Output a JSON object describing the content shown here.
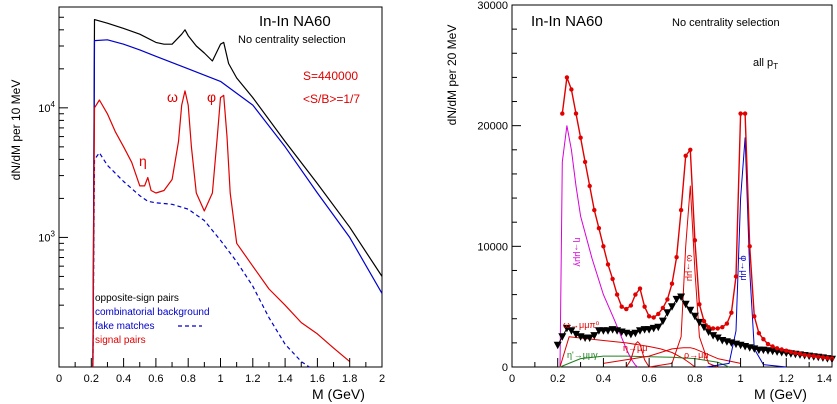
{
  "chart_data": [
    {
      "type": "line",
      "yscale": "log",
      "title": "In-In  NA60",
      "subtitle": "No centrality selection",
      "xlabel": "M (GeV)",
      "ylabel": "dN/dM per 10 MeV",
      "xlim": [
        0,
        2
      ],
      "ylim": [
        100,
        60000
      ],
      "x_ticks": [
        "0",
        "0.2",
        "0.4",
        "0.6",
        "0.8",
        "1",
        "1.2",
        "1.4",
        "1.6",
        "1.8",
        "2"
      ],
      "y_ticks": [
        {
          "value": 1000,
          "base": "10",
          "exp": "3"
        },
        {
          "value": 10000,
          "base": "10",
          "exp": "4"
        }
      ],
      "annotations": {
        "signal_count": "S=440000",
        "s_over_b": "<S/B>=1/7",
        "omega": "ω",
        "phi": "φ",
        "eta": "η"
      },
      "legend_position": "bottom-left",
      "series": [
        {
          "name": "opposite-sign pairs",
          "color": "#000000",
          "style": "solid",
          "x": [
            0.21,
            0.22,
            0.3,
            0.4,
            0.5,
            0.6,
            0.65,
            0.7,
            0.76,
            0.78,
            0.8,
            0.85,
            0.9,
            0.95,
            1.0,
            1.02,
            1.05,
            1.1,
            1.2,
            1.4,
            1.6,
            1.8,
            2.0
          ],
          "y": [
            100,
            48000,
            45000,
            41000,
            37000,
            32000,
            31000,
            31000,
            37000,
            40000,
            36000,
            30000,
            26500,
            23000,
            31000,
            32000,
            22000,
            17000,
            12000,
            5500,
            2600,
            1200,
            500
          ]
        },
        {
          "name": "combinatorial background",
          "color": "#0000cc",
          "style": "solid",
          "x": [
            0.21,
            0.22,
            0.3,
            0.4,
            0.5,
            0.6,
            0.8,
            1.0,
            1.2,
            1.4,
            1.6,
            1.8,
            2.0
          ],
          "y": [
            100,
            33000,
            33500,
            31000,
            28000,
            25000,
            20000,
            16000,
            10500,
            5000,
            2200,
            1000,
            370
          ]
        },
        {
          "name": "fake matches",
          "color": "#0000cc",
          "style": "dashed",
          "x": [
            0.21,
            0.22,
            0.25,
            0.3,
            0.4,
            0.5,
            0.55,
            0.6,
            0.7,
            0.8,
            0.9,
            1.0,
            1.1,
            1.2,
            1.3,
            1.4,
            1.5,
            1.55
          ],
          "y": [
            100,
            4000,
            4500,
            3600,
            2700,
            2100,
            1900,
            1850,
            1800,
            1650,
            1350,
            950,
            650,
            420,
            240,
            150,
            110,
            100
          ]
        },
        {
          "name": "signal pairs",
          "color": "#e00000",
          "style": "solid",
          "x": [
            0.21,
            0.22,
            0.25,
            0.3,
            0.35,
            0.4,
            0.45,
            0.5,
            0.53,
            0.55,
            0.57,
            0.6,
            0.65,
            0.7,
            0.74,
            0.76,
            0.78,
            0.8,
            0.82,
            0.85,
            0.9,
            0.95,
            0.98,
            1.0,
            1.02,
            1.04,
            1.06,
            1.1,
            1.2,
            1.3,
            1.4,
            1.5,
            1.6,
            1.7,
            1.8
          ],
          "y": [
            100,
            10000,
            11500,
            9000,
            6500,
            5000,
            3800,
            2500,
            2500,
            2900,
            2300,
            2200,
            2300,
            2800,
            5500,
            10500,
            13500,
            10500,
            5000,
            2200,
            1600,
            2200,
            6000,
            12000,
            12500,
            6000,
            2200,
            900,
            600,
            400,
            300,
            220,
            180,
            140,
            110
          ]
        }
      ]
    },
    {
      "type": "line",
      "yscale": "linear",
      "title": "In-In  NA60",
      "subtitle": "No centrality selection",
      "pt_label": "all p",
      "pt_sub": "T",
      "xlabel": "M (GeV)",
      "ylabel": "dN/dM per 20 MeV",
      "xlim": [
        0,
        1.4
      ],
      "ylim": [
        0,
        30000
      ],
      "x_ticks": [
        "0",
        "0.2",
        "0.4",
        "0.6",
        "0.8",
        "1",
        "1.2",
        "1.4"
      ],
      "y_ticks": [
        "0",
        "10000",
        "20000",
        "30000"
      ],
      "series_labels": {
        "eta_dalitz": "η→μμγ",
        "omega_dalitz": "ω→μμπ⁰",
        "eta_prime": "η'→μμγ",
        "eta_direct": "η→μμ",
        "rho": "ρ→μμ",
        "omega": "ω→μμ",
        "phi": "φ→μμ"
      },
      "series": [
        {
          "id": "total",
          "color": "#e00000",
          "marker": "circle",
          "x": [
            0.22,
            0.24,
            0.26,
            0.28,
            0.3,
            0.32,
            0.34,
            0.36,
            0.38,
            0.4,
            0.42,
            0.44,
            0.46,
            0.48,
            0.5,
            0.52,
            0.54,
            0.56,
            0.58,
            0.6,
            0.62,
            0.64,
            0.66,
            0.68,
            0.7,
            0.72,
            0.74,
            0.76,
            0.78,
            0.8,
            0.82,
            0.84,
            0.86,
            0.88,
            0.9,
            0.92,
            0.94,
            0.96,
            0.98,
            1.0,
            1.02,
            1.04,
            1.06,
            1.08,
            1.1,
            1.12,
            1.14,
            1.16,
            1.18,
            1.2,
            1.22,
            1.24,
            1.26,
            1.28,
            1.3,
            1.32,
            1.34,
            1.36,
            1.38,
            1.4
          ],
          "y": [
            21000,
            24000,
            23000,
            21000,
            19000,
            17000,
            15000,
            13000,
            11500,
            10000,
            8500,
            7300,
            6000,
            5000,
            4800,
            5100,
            6000,
            6500,
            5000,
            4200,
            4100,
            4400,
            4900,
            5600,
            6900,
            9100,
            13000,
            17500,
            18000,
            10500,
            5200,
            3800,
            3300,
            3200,
            3200,
            3300,
            3600,
            4500,
            7500,
            21000,
            21000,
            10000,
            4200,
            2800,
            2300,
            1900,
            1700,
            1550,
            1450,
            1350,
            1250,
            1150,
            1100,
            1000,
            950,
            900,
            850,
            800,
            750,
            700
          ]
        },
        {
          "id": "combinatorial",
          "color": "#000000",
          "marker": "triangle-down",
          "x": [
            0.2,
            0.22,
            0.24,
            0.26,
            0.28,
            0.3,
            0.32,
            0.34,
            0.36,
            0.38,
            0.4,
            0.42,
            0.44,
            0.46,
            0.48,
            0.5,
            0.52,
            0.54,
            0.56,
            0.58,
            0.6,
            0.62,
            0.64,
            0.66,
            0.68,
            0.7,
            0.72,
            0.74,
            0.76,
            0.78,
            0.8,
            0.82,
            0.84,
            0.86,
            0.88,
            0.9,
            0.92,
            0.94,
            0.96,
            0.98,
            1.0,
            1.02,
            1.04,
            1.06,
            1.08,
            1.1,
            1.12,
            1.14,
            1.16,
            1.18,
            1.2,
            1.22,
            1.24,
            1.26,
            1.28,
            1.3,
            1.32,
            1.34,
            1.36,
            1.38,
            1.4
          ],
          "y": [
            1800,
            2500,
            3200,
            3000,
            2700,
            2500,
            2400,
            2400,
            2600,
            3000,
            3000,
            3000,
            3100,
            3000,
            2900,
            2800,
            2700,
            2800,
            3000,
            3100,
            3100,
            3200,
            3300,
            3800,
            4500,
            5000,
            5600,
            5800,
            5200,
            4700,
            4200,
            3700,
            3300,
            2900,
            2600,
            2400,
            2200,
            2100,
            2000,
            1900,
            1800,
            1700,
            1600,
            1500,
            1400,
            1400,
            1350,
            1300,
            1250,
            1200,
            1150,
            1100,
            1050,
            1000,
            950,
            900,
            850,
            800,
            750,
            700,
            650
          ]
        },
        {
          "id": "eta_dalitz",
          "color": "#d800d8",
          "x": [
            0.21,
            0.22,
            0.24,
            0.26,
            0.28,
            0.3,
            0.35,
            0.4,
            0.45,
            0.5,
            0.52,
            0.54,
            0.55
          ],
          "y": [
            0,
            17000,
            20000,
            18000,
            15000,
            12500,
            9000,
            6000,
            3800,
            1500,
            700,
            150,
            0
          ]
        },
        {
          "id": "omega_dalitz",
          "color": "#e00000",
          "x": [
            0.21,
            0.25,
            0.3,
            0.4,
            0.5,
            0.6,
            0.65,
            0.7,
            0.75,
            0.78,
            0.8
          ],
          "y": [
            0,
            2500,
            2400,
            2200,
            2000,
            1700,
            1500,
            1200,
            700,
            300,
            0
          ]
        },
        {
          "id": "eta_prime",
          "color": "#208020",
          "x": [
            0.21,
            0.3,
            0.4,
            0.5,
            0.6,
            0.7,
            0.8,
            0.9,
            0.95
          ],
          "y": [
            0,
            700,
            900,
            900,
            850,
            800,
            700,
            400,
            0
          ]
        },
        {
          "id": "eta_direct",
          "color": "#e00000",
          "x": [
            0.5,
            0.52,
            0.54,
            0.55,
            0.56,
            0.58,
            0.6
          ],
          "y": [
            0,
            600,
            1900,
            2100,
            1900,
            600,
            0
          ]
        },
        {
          "id": "rho",
          "color": "#e00000",
          "x": [
            0.4,
            0.5,
            0.6,
            0.65,
            0.7,
            0.75,
            0.78,
            0.8,
            0.85,
            0.9,
            1.0
          ],
          "y": [
            300,
            600,
            900,
            1200,
            1500,
            1600,
            1600,
            1500,
            1100,
            700,
            300
          ]
        },
        {
          "id": "omega",
          "color": "#e00000",
          "x": [
            0.6,
            0.7,
            0.74,
            0.76,
            0.78,
            0.8,
            0.82,
            0.86,
            0.9
          ],
          "y": [
            0,
            300,
            2500,
            10000,
            15000,
            8000,
            2500,
            300,
            0
          ]
        },
        {
          "id": "phi",
          "color": "#0000cc",
          "x": [
            0.85,
            0.95,
            0.98,
            1.0,
            1.02,
            1.04,
            1.06,
            1.1,
            1.2
          ],
          "y": [
            0,
            300,
            3000,
            14000,
            19000,
            8000,
            1500,
            200,
            0
          ]
        }
      ]
    }
  ]
}
